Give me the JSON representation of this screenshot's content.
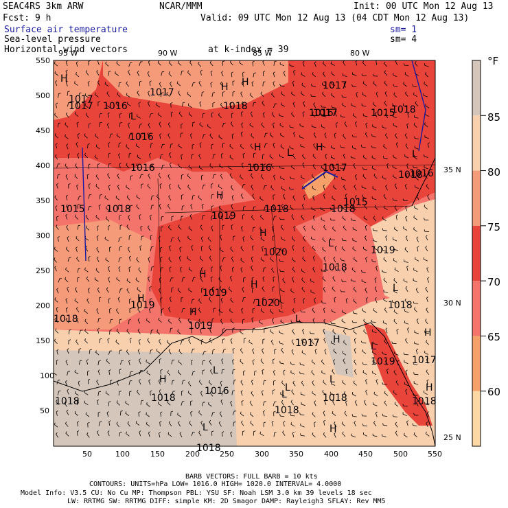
{
  "header": {
    "model": "SEAC4RS  3km ARW",
    "org": "NCAR/MMM",
    "init": "Init: 00 UTC Mon 12 Aug 13",
    "fcst": "Fcst:   9 h",
    "valid": "Valid: 09 UTC Mon 12 Aug 13 (04 CDT Mon 12 Aug 13)",
    "field1": "Surface air temperature",
    "field1_sm": "sm= 1",
    "field2": "Sea-level pressure",
    "field2_sm": "sm= 4",
    "field3": "Horizontal wind vectors",
    "field3_level": "at k-index =  39"
  },
  "map": {
    "lon_labels": [
      "95 W",
      "90 W",
      "85 W",
      "80 W"
    ],
    "lat_labels": [
      "35 N",
      "30 N",
      "25 N"
    ],
    "x_ticks": [
      "50",
      "100",
      "150",
      "200",
      "250",
      "300",
      "350",
      "400",
      "450",
      "500",
      "550"
    ],
    "y_ticks": [
      "550",
      "500",
      "450",
      "400",
      "350",
      "300",
      "250",
      "200",
      "150",
      "100",
      "50"
    ],
    "pressure_labels": [
      {
        "text": "1017",
        "kind": "value"
      },
      {
        "text": "1017",
        "kind": "value"
      },
      {
        "text": "1018",
        "kind": "value"
      },
      {
        "text": "1016",
        "kind": "value"
      },
      {
        "text": "1018",
        "kind": "value"
      },
      {
        "text": "1016",
        "kind": "value"
      },
      {
        "text": "1016",
        "kind": "value"
      },
      {
        "text": "1016",
        "kind": "value"
      },
      {
        "text": "1017",
        "kind": "value"
      },
      {
        "text": "1015",
        "kind": "value"
      },
      {
        "text": "1018",
        "kind": "value"
      },
      {
        "text": "1016",
        "kind": "value"
      },
      {
        "text": "1018",
        "kind": "value"
      },
      {
        "text": "1019",
        "kind": "value"
      },
      {
        "text": "1018",
        "kind": "value"
      },
      {
        "text": "1017",
        "kind": "value"
      },
      {
        "text": "1020",
        "kind": "value"
      },
      {
        "text": "1018",
        "kind": "value"
      },
      {
        "text": "1019",
        "kind": "value"
      },
      {
        "text": "1019",
        "kind": "value"
      },
      {
        "text": "1020",
        "kind": "value"
      },
      {
        "text": "1018",
        "kind": "value"
      },
      {
        "text": "1018",
        "kind": "value"
      },
      {
        "text": "1016",
        "kind": "value"
      },
      {
        "text": "1019",
        "kind": "value"
      },
      {
        "text": "1019",
        "kind": "value"
      },
      {
        "text": "1019",
        "kind": "value"
      },
      {
        "text": "1018",
        "kind": "value"
      },
      {
        "text": "1018",
        "kind": "value"
      },
      {
        "text": "1018",
        "kind": "value"
      },
      {
        "text": "1018",
        "kind": "value"
      },
      {
        "text": "1017",
        "kind": "value"
      },
      {
        "text": "1017",
        "kind": "value"
      },
      {
        "text": "1016",
        "kind": "value"
      },
      {
        "text": "1017",
        "kind": "value"
      },
      {
        "text": "1017",
        "kind": "value"
      },
      {
        "text": "1015",
        "kind": "value"
      },
      {
        "text": "1015",
        "kind": "value"
      },
      {
        "text": "1018",
        "kind": "value"
      },
      {
        "text": "1018",
        "kind": "value"
      },
      {
        "text": "1018",
        "kind": "value"
      }
    ],
    "hl_marks": [
      "H",
      "H",
      "L",
      "H",
      "L",
      "H",
      "H",
      "H",
      "L",
      "H",
      "H",
      "L",
      "L",
      "H",
      "L",
      "H",
      "L",
      "L",
      "H",
      "L",
      "L",
      "H",
      "L",
      "H",
      "H",
      "L",
      "H",
      "H"
    ]
  },
  "colorbar": {
    "unit": "°F",
    "labels": [
      "85",
      "80",
      "75",
      "70",
      "65",
      "60"
    ],
    "colors": [
      "#d4c6bb",
      "#f8d0ae",
      "#f59b7a",
      "#e8443a",
      "#f4736a",
      "#f6a169",
      "#fcd9a4"
    ]
  },
  "footer": {
    "barb": "BARB VECTORS:  FULL BARB = 10 kts",
    "contours": "CONTOURS:  UNITS=hPa  LOW=  1016.0      HIGH=  1020.0     INTERVAL=    4.0000",
    "info1": "Model Info: V3.5      CU: No Cu      MP: Thompson     PBL: YSU       SF: Noah LSM     3.0 km   39 levels   18 sec",
    "info2": "LW: RRTMG   SW: RRTMG   DIFF: simple KM: 2D Smagor DAMP: Rayleigh3  SFLAY: Rev MM5"
  }
}
